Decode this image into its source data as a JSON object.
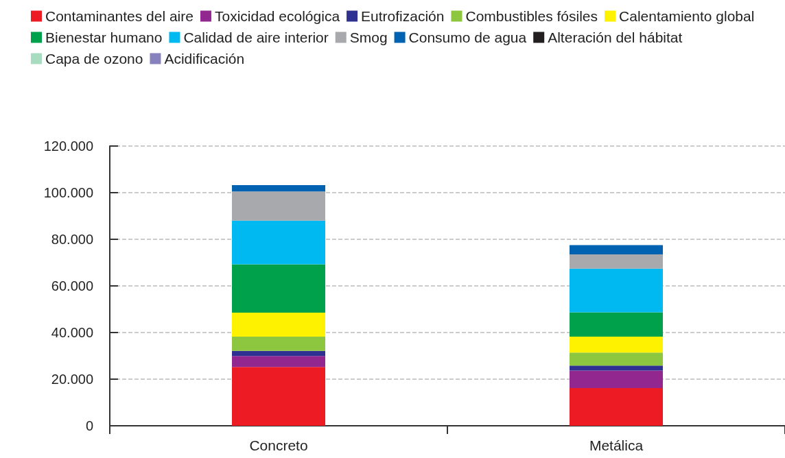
{
  "chart_data": {
    "type": "bar",
    "stacked": true,
    "categories": [
      "Concreto",
      "Metálica"
    ],
    "series": [
      {
        "name": "Contaminantes del aire",
        "color": "#ed1c24",
        "values": [
          25200,
          16200
        ]
      },
      {
        "name": "Toxicidad ecológica",
        "color": "#92278f",
        "values": [
          4700,
          7500
        ]
      },
      {
        "name": "Eutrofización",
        "color": "#2e3192",
        "values": [
          2200,
          2100
        ]
      },
      {
        "name": "Combustibles fósiles",
        "color": "#8dc63f",
        "values": [
          6100,
          5600
        ]
      },
      {
        "name": "Calentamiento global",
        "color": "#fff200",
        "values": [
          10300,
          6800
        ]
      },
      {
        "name": "Bienestar humano",
        "color": "#00a14b",
        "values": [
          20800,
          10500
        ]
      },
      {
        "name": "Calidad de aire interior",
        "color": "#00b9f1",
        "values": [
          18700,
          18700
        ]
      },
      {
        "name": "Smog",
        "color": "#a7a9ac",
        "values": [
          12500,
          6100
        ]
      },
      {
        "name": "Consumo de agua",
        "color": "#0062b1",
        "values": [
          2700,
          4000
        ]
      },
      {
        "name": "Alteración del hábitat",
        "color": "#231f20",
        "values": [
          0,
          0
        ]
      },
      {
        "name": "Capa de ozono",
        "color": "#a8dcc0",
        "values": [
          0,
          0
        ]
      },
      {
        "name": "Acidificación",
        "color": "#8781bd",
        "values": [
          0,
          0
        ]
      }
    ],
    "ylim": [
      0,
      120000
    ],
    "yticks": [
      {
        "value": 0,
        "label": "0"
      },
      {
        "value": 20000,
        "label": "20.000"
      },
      {
        "value": 40000,
        "label": "40.000"
      },
      {
        "value": 60000,
        "label": "60.000"
      },
      {
        "value": 80000,
        "label": "80.000"
      },
      {
        "value": 100000,
        "label": "100.000"
      },
      {
        "value": 120000,
        "label": "120.000"
      }
    ],
    "grid": "y",
    "legend": "top"
  }
}
